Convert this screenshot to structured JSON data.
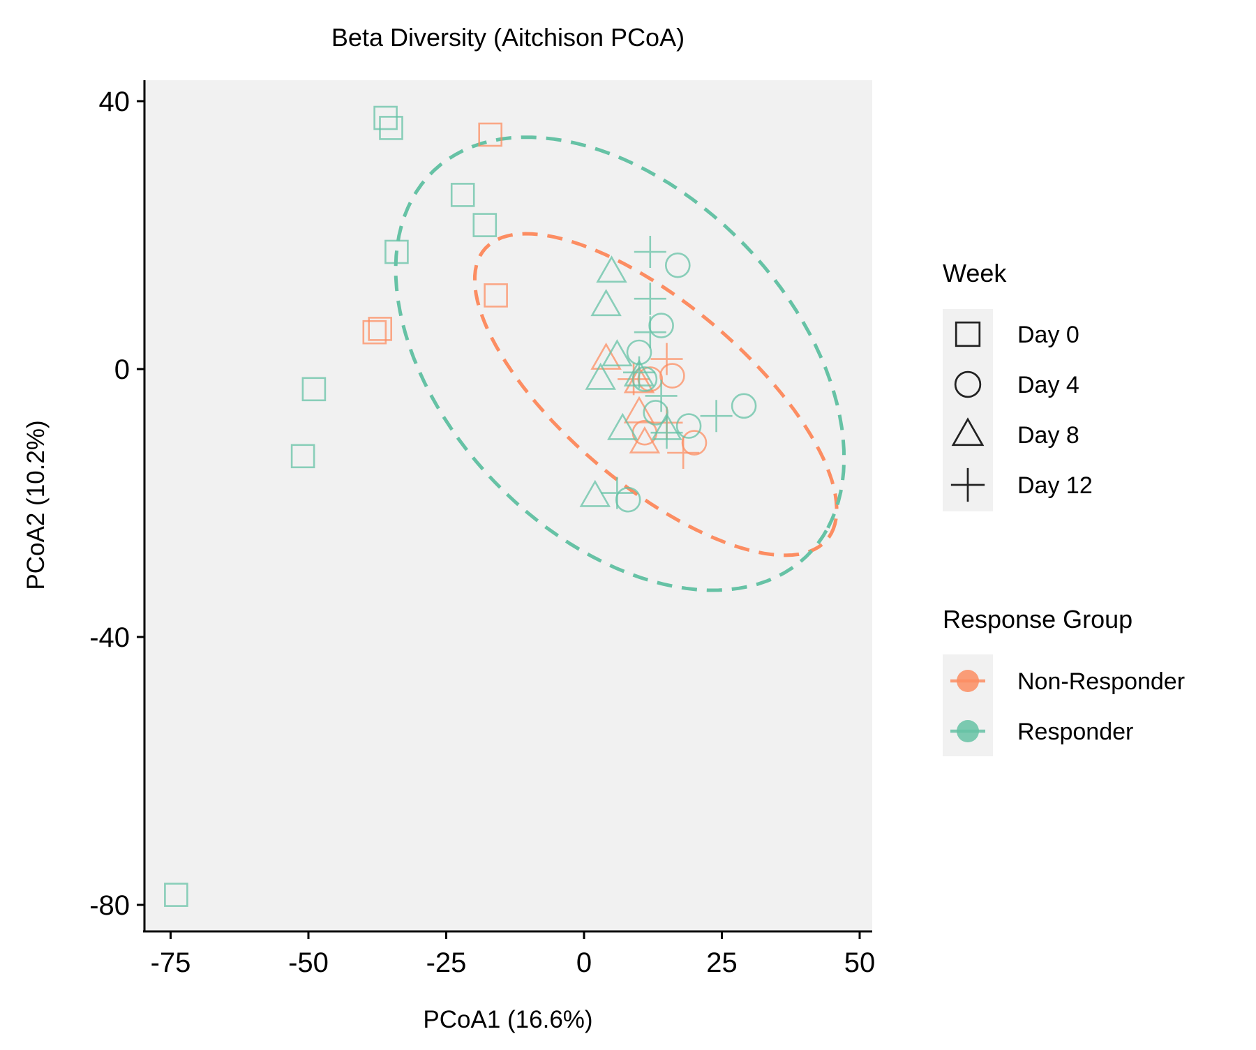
{
  "chart_data": {
    "type": "scatter",
    "title": "Beta Diversity (Aitchison PCoA)",
    "xlabel": "PCoA1 (16.6%)",
    "ylabel": "PCoA2 (10.2%)",
    "xlim": [
      -80,
      50
    ],
    "ylim": [
      -84,
      43
    ],
    "xticks": [
      -75,
      -50,
      -25,
      0,
      25,
      50
    ],
    "yticks": [
      40,
      0,
      -40,
      -80
    ],
    "grid": false,
    "legend_placement": "right",
    "colors": {
      "Non-Responder": "#fc8d62",
      "Responder": "#66c2a5"
    },
    "shape_legend": {
      "title": "Week",
      "entries": [
        {
          "label": "Day 0",
          "shape": "square"
        },
        {
          "label": "Day 4",
          "shape": "circle"
        },
        {
          "label": "Day 8",
          "shape": "triangle"
        },
        {
          "label": "Day 12",
          "shape": "plus"
        }
      ]
    },
    "color_legend": {
      "title": "Response Group",
      "entries": [
        {
          "label": "Non-Responder",
          "color": "#fc8d62"
        },
        {
          "label": "Responder",
          "color": "#66c2a5"
        }
      ]
    },
    "series": [
      {
        "name": "Non-Responder",
        "color": "#fc8d62",
        "points": [
          {
            "x": -17,
            "y": 35,
            "week": "Day 0"
          },
          {
            "x": -16,
            "y": 11,
            "week": "Day 0"
          },
          {
            "x": -37,
            "y": 6,
            "week": "Day 0"
          },
          {
            "x": -38,
            "y": 5.5,
            "week": "Day 0"
          },
          {
            "x": 16,
            "y": -1,
            "week": "Day 4"
          },
          {
            "x": 12,
            "y": -1.5,
            "week": "Day 4"
          },
          {
            "x": 11,
            "y": -9.5,
            "week": "Day 4"
          },
          {
            "x": 20,
            "y": -11,
            "week": "Day 4"
          },
          {
            "x": 4,
            "y": 1.5,
            "week": "Day 8"
          },
          {
            "x": 10,
            "y": -6.5,
            "week": "Day 8"
          },
          {
            "x": 11,
            "y": -11,
            "week": "Day 8"
          },
          {
            "x": 10,
            "y": -2,
            "week": "Day 8"
          },
          {
            "x": 15,
            "y": 1.5,
            "week": "Day 12"
          },
          {
            "x": 9,
            "y": -1.5,
            "week": "Day 12"
          },
          {
            "x": 15,
            "y": -8,
            "week": "Day 12"
          },
          {
            "x": 18,
            "y": -12.5,
            "week": "Day 12"
          }
        ]
      },
      {
        "name": "Responder",
        "color": "#66c2a5",
        "points": [
          {
            "x": -36,
            "y": 37.5,
            "week": "Day 0"
          },
          {
            "x": -35,
            "y": 36,
            "week": "Day 0"
          },
          {
            "x": -22,
            "y": 26,
            "week": "Day 0"
          },
          {
            "x": -18,
            "y": 21.5,
            "week": "Day 0"
          },
          {
            "x": -34,
            "y": 17.5,
            "week": "Day 0"
          },
          {
            "x": -49,
            "y": -3,
            "week": "Day 0"
          },
          {
            "x": -51,
            "y": -13,
            "week": "Day 0"
          },
          {
            "x": -74,
            "y": -78.5,
            "week": "Day 0"
          },
          {
            "x": 17,
            "y": 15.5,
            "week": "Day 4"
          },
          {
            "x": 14,
            "y": 6.5,
            "week": "Day 4"
          },
          {
            "x": 10,
            "y": 2.5,
            "week": "Day 4"
          },
          {
            "x": 11,
            "y": -1.5,
            "week": "Day 4"
          },
          {
            "x": 13,
            "y": -6.5,
            "week": "Day 4"
          },
          {
            "x": 19,
            "y": -8.5,
            "week": "Day 4"
          },
          {
            "x": 29,
            "y": -5.5,
            "week": "Day 4"
          },
          {
            "x": 8,
            "y": -19.5,
            "week": "Day 4"
          },
          {
            "x": 5,
            "y": 14.5,
            "week": "Day 8"
          },
          {
            "x": 4,
            "y": 9.5,
            "week": "Day 8"
          },
          {
            "x": 6,
            "y": 2,
            "week": "Day 8"
          },
          {
            "x": 3,
            "y": -1.5,
            "week": "Day 8"
          },
          {
            "x": 10,
            "y": -1,
            "week": "Day 8"
          },
          {
            "x": 7,
            "y": -9,
            "week": "Day 8"
          },
          {
            "x": 15,
            "y": -9,
            "week": "Day 8"
          },
          {
            "x": 2,
            "y": -19,
            "week": "Day 8"
          },
          {
            "x": 12,
            "y": 17.5,
            "week": "Day 12"
          },
          {
            "x": 12,
            "y": 10.5,
            "week": "Day 12"
          },
          {
            "x": 12,
            "y": 5.5,
            "week": "Day 12"
          },
          {
            "x": 10,
            "y": -0.5,
            "week": "Day 12"
          },
          {
            "x": 14,
            "y": -4,
            "week": "Day 12"
          },
          {
            "x": 24,
            "y": -7,
            "week": "Day 12"
          },
          {
            "x": 15,
            "y": -9.5,
            "week": "Day 12"
          },
          {
            "x": 6,
            "y": -18.5,
            "week": "Day 12"
          }
        ]
      }
    ],
    "ellipses": [
      {
        "group": "Non-Responder",
        "color": "#fc8d62",
        "center": [
          13,
          -3.8
        ],
        "semi_axes": [
          38,
          14.5
        ],
        "rotation_deg": -33
      },
      {
        "group": "Responder",
        "color": "#66c2a5",
        "center": [
          6.5,
          0.8
        ],
        "semi_axes": [
          45,
          27.8
        ],
        "rotation_deg": -33
      }
    ]
  }
}
